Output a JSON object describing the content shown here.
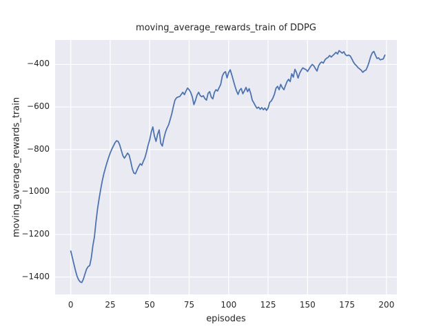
{
  "title": "moving_average_rewards_train of DDPG",
  "colors": {
    "axes_background": "#EAEAF2",
    "grid": "#FFFFFF",
    "line": "#4C72B0",
    "text": "#262626",
    "figure_background": "#FFFFFF"
  },
  "chart_data": {
    "type": "line",
    "title": "moving_average_rewards_train of DDPG",
    "xlabel": "episodes",
    "ylabel": "moving_average_rewards_train",
    "legend": "none",
    "grid": true,
    "x_ticks": [
      0,
      25,
      50,
      75,
      100,
      125,
      150,
      175,
      200
    ],
    "y_ticks": [
      -400,
      -600,
      -800,
      -1000,
      -1200,
      -1400
    ],
    "xlim": [
      -9.9,
      206.6
    ],
    "ylim": [
      -1482,
      -285
    ],
    "series": [
      {
        "name": "moving_average_rewards_train",
        "x_start": 0,
        "x_step": 1,
        "y": [
          -1278,
          -1308,
          -1340,
          -1370,
          -1396,
          -1413,
          -1423,
          -1426,
          -1410,
          -1386,
          -1363,
          -1351,
          -1346,
          -1310,
          -1252,
          -1212,
          -1140,
          -1078,
          -1030,
          -986,
          -946,
          -913,
          -886,
          -860,
          -837,
          -816,
          -799,
          -784,
          -769,
          -759,
          -762,
          -778,
          -803,
          -829,
          -841,
          -829,
          -817,
          -826,
          -856,
          -891,
          -911,
          -914,
          -896,
          -880,
          -867,
          -874,
          -855,
          -838,
          -812,
          -780,
          -755,
          -718,
          -694,
          -737,
          -762,
          -729,
          -708,
          -771,
          -784,
          -748,
          -719,
          -699,
          -684,
          -659,
          -632,
          -598,
          -568,
          -557,
          -553,
          -551,
          -541,
          -531,
          -542,
          -525,
          -511,
          -519,
          -532,
          -553,
          -589,
          -569,
          -544,
          -531,
          -546,
          -552,
          -547,
          -561,
          -568,
          -536,
          -528,
          -554,
          -562,
          -531,
          -519,
          -525,
          -509,
          -494,
          -455,
          -440,
          -434,
          -463,
          -438,
          -425,
          -449,
          -476,
          -501,
          -524,
          -541,
          -521,
          -513,
          -538,
          -524,
          -508,
          -528,
          -514,
          -537,
          -568,
          -581,
          -595,
          -606,
          -601,
          -611,
          -603,
          -613,
          -605,
          -616,
          -605,
          -579,
          -572,
          -559,
          -541,
          -512,
          -503,
          -519,
          -494,
          -509,
          -519,
          -499,
          -481,
          -470,
          -481,
          -444,
          -460,
          -423,
          -438,
          -464,
          -441,
          -427,
          -416,
          -421,
          -424,
          -433,
          -421,
          -409,
          -400,
          -407,
          -420,
          -431,
          -406,
          -394,
          -388,
          -394,
          -379,
          -371,
          -367,
          -358,
          -365,
          -358,
          -351,
          -343,
          -351,
          -335,
          -341,
          -347,
          -340,
          -354,
          -359,
          -356,
          -360,
          -373,
          -388,
          -399,
          -406,
          -415,
          -421,
          -427,
          -437,
          -430,
          -426,
          -410,
          -388,
          -362,
          -345,
          -339,
          -356,
          -372,
          -369,
          -378,
          -376,
          -374,
          -356
        ]
      }
    ]
  }
}
